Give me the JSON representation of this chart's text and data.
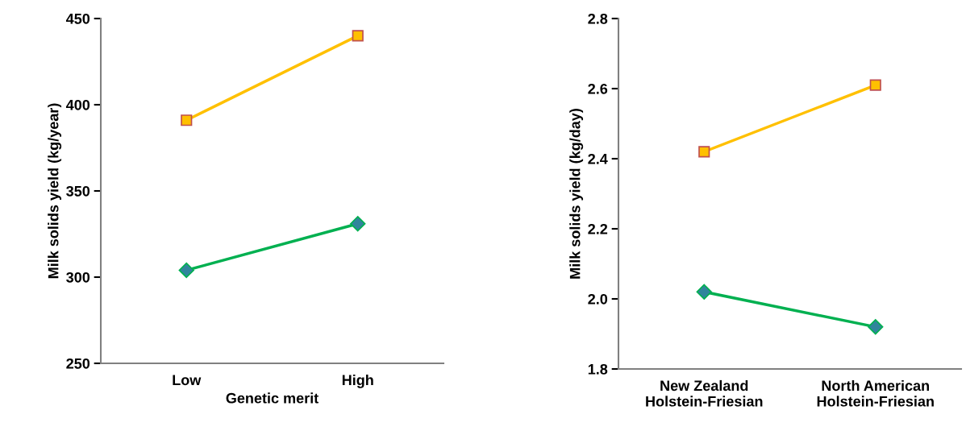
{
  "chart_data": [
    {
      "type": "line",
      "xlabel": "Genetic merit",
      "ylabel": "Milk solids yield (kg/year)",
      "categories": [
        "Low",
        "High"
      ],
      "ylim": [
        250,
        450
      ],
      "yticks": [
        250,
        300,
        350,
        400,
        450
      ],
      "grid": false,
      "legend": false,
      "series": [
        {
          "color": "#ffc000",
          "marker": "square",
          "values": [
            391,
            440
          ]
        },
        {
          "color": "#00b050",
          "marker": "diamond",
          "values": [
            304,
            331
          ]
        }
      ]
    },
    {
      "type": "line",
      "ylabel": "Milk solids yield (kg/day)",
      "categories": [
        "New Zealand\nHolstein-Friesian",
        "North American\nHolstein-Friesian"
      ],
      "ylim": [
        1.8,
        2.8
      ],
      "yticks": [
        {
          "value": 1.8,
          "label": "1.8"
        },
        {
          "value": 2.0,
          "label": "2.0"
        },
        {
          "value": 2.2,
          "label": "2.2"
        },
        {
          "value": 2.4,
          "label": "2.4"
        },
        {
          "value": 2.6,
          "label": "2.6"
        },
        {
          "value": 2.8,
          "label": "2.8"
        }
      ],
      "grid": false,
      "legend": false,
      "series": [
        {
          "color": "#ffc000",
          "marker": "square",
          "values": [
            2.42,
            2.61
          ]
        },
        {
          "color": "#00b050",
          "marker": "diamond",
          "values": [
            2.02,
            1.92
          ]
        }
      ]
    }
  ]
}
